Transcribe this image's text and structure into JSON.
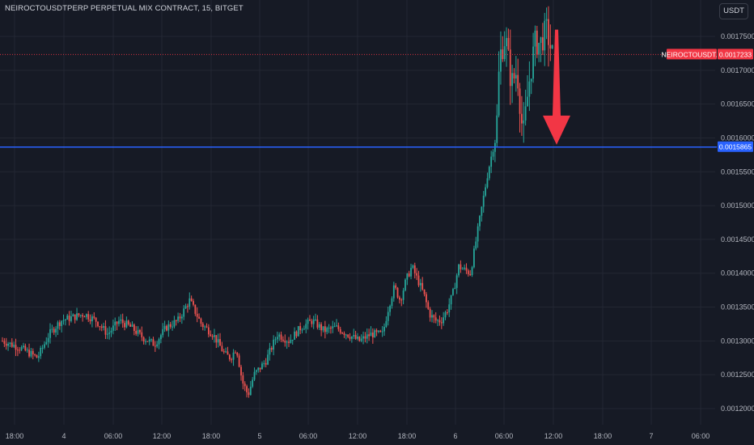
{
  "header": {
    "title": "NEIROCTOUSDTPERP PERPETUAL MIX CONTRACT, 15, BITGET",
    "currency_button": "USDT"
  },
  "colors": {
    "background": "#161a25",
    "grid": "#232733",
    "up": "#26a69a",
    "down": "#ef5350",
    "level_line": "#2962ff",
    "arrow": "#f23645",
    "price_tag": "#f23645"
  },
  "annotations": {
    "last_price_symbol": "NEIROCTOUSDT.P",
    "last_price": "0.0017233",
    "level_price": "0.0015865",
    "arrow_icon": "down-arrow-icon"
  },
  "chart_data": {
    "type": "candlestick",
    "title": "NEIROCTOUSDTPERP PERPETUAL MIX CONTRACT, 15, BITGET",
    "yaxis": {
      "ticks": [
        "0.0012000",
        "0.0012500",
        "0.0013000",
        "0.0013500",
        "0.0014000",
        "0.0014500",
        "0.0015000",
        "0.0015500",
        "0.0016000",
        "0.0016500",
        "0.0017000",
        "0.0017500"
      ],
      "ylim": [
        0.00118,
        0.0018
      ]
    },
    "xaxis": {
      "ticks": [
        "18:00",
        "4",
        "06:00",
        "12:00",
        "18:00",
        "5",
        "06:00",
        "12:00",
        "18:00",
        "6",
        "06:00",
        "12:00",
        "18:00",
        "7",
        "06:00"
      ]
    },
    "grid": true,
    "horizontal_line": 0.0015865,
    "last_price_line": 0.0017233,
    "arrow": {
      "from": 0.00176,
      "to": 0.00159,
      "direction": "down"
    },
    "close_path": [
      [
        0,
        0.0013
      ],
      [
        3,
        0.00129
      ],
      [
        6,
        0.001275
      ],
      [
        8,
        0.00131
      ],
      [
        10,
        0.00133
      ],
      [
        12,
        0.001335
      ],
      [
        14,
        0.00134
      ],
      [
        16,
        0.00133
      ],
      [
        18,
        0.00131
      ],
      [
        20,
        0.00133
      ],
      [
        22,
        0.00132
      ],
      [
        24,
        0.001305
      ],
      [
        26,
        0.001295
      ],
      [
        28,
        0.00132
      ],
      [
        30,
        0.00133
      ],
      [
        32,
        0.00136
      ],
      [
        34,
        0.001325
      ],
      [
        36,
        0.00131
      ],
      [
        38,
        0.00128
      ],
      [
        39,
        0.001275
      ],
      [
        40,
        0.00129
      ],
      [
        41,
        0.00124
      ],
      [
        42,
        0.00122
      ],
      [
        43,
        0.00125
      ],
      [
        45,
        0.00127
      ],
      [
        47,
        0.00131
      ],
      [
        49,
        0.0013
      ],
      [
        51,
        0.00132
      ],
      [
        53,
        0.00133
      ],
      [
        55,
        0.001315
      ],
      [
        57,
        0.00132
      ],
      [
        59,
        0.00131
      ],
      [
        61,
        0.0013
      ],
      [
        63,
        0.00131
      ],
      [
        65,
        0.00131
      ],
      [
        66,
        0.00135
      ],
      [
        67,
        0.00138
      ],
      [
        68,
        0.00136
      ],
      [
        69,
        0.00139
      ],
      [
        70,
        0.00141
      ],
      [
        71,
        0.00139
      ],
      [
        72,
        0.00137
      ],
      [
        73,
        0.00134
      ],
      [
        74,
        0.00133
      ],
      [
        75,
        0.00133
      ],
      [
        76,
        0.001345
      ],
      [
        77,
        0.00137
      ],
      [
        78,
        0.00141
      ],
      [
        79,
        0.001405
      ],
      [
        80,
        0.0014
      ],
      [
        81,
        0.00145
      ],
      [
        82,
        0.0015
      ],
      [
        83,
        0.00155
      ],
      [
        84,
        0.00159
      ],
      [
        84.5,
        0.00162
      ],
      [
        85,
        0.00172
      ],
      [
        86,
        0.00175
      ],
      [
        87,
        0.00168
      ],
      [
        88,
        0.0017
      ],
      [
        89,
        0.0016
      ],
      [
        90,
        0.00168
      ],
      [
        91,
        0.00174
      ],
      [
        92,
        0.00174
      ],
      [
        93,
        0.00176
      ],
      [
        94,
        0.001723
      ]
    ]
  }
}
